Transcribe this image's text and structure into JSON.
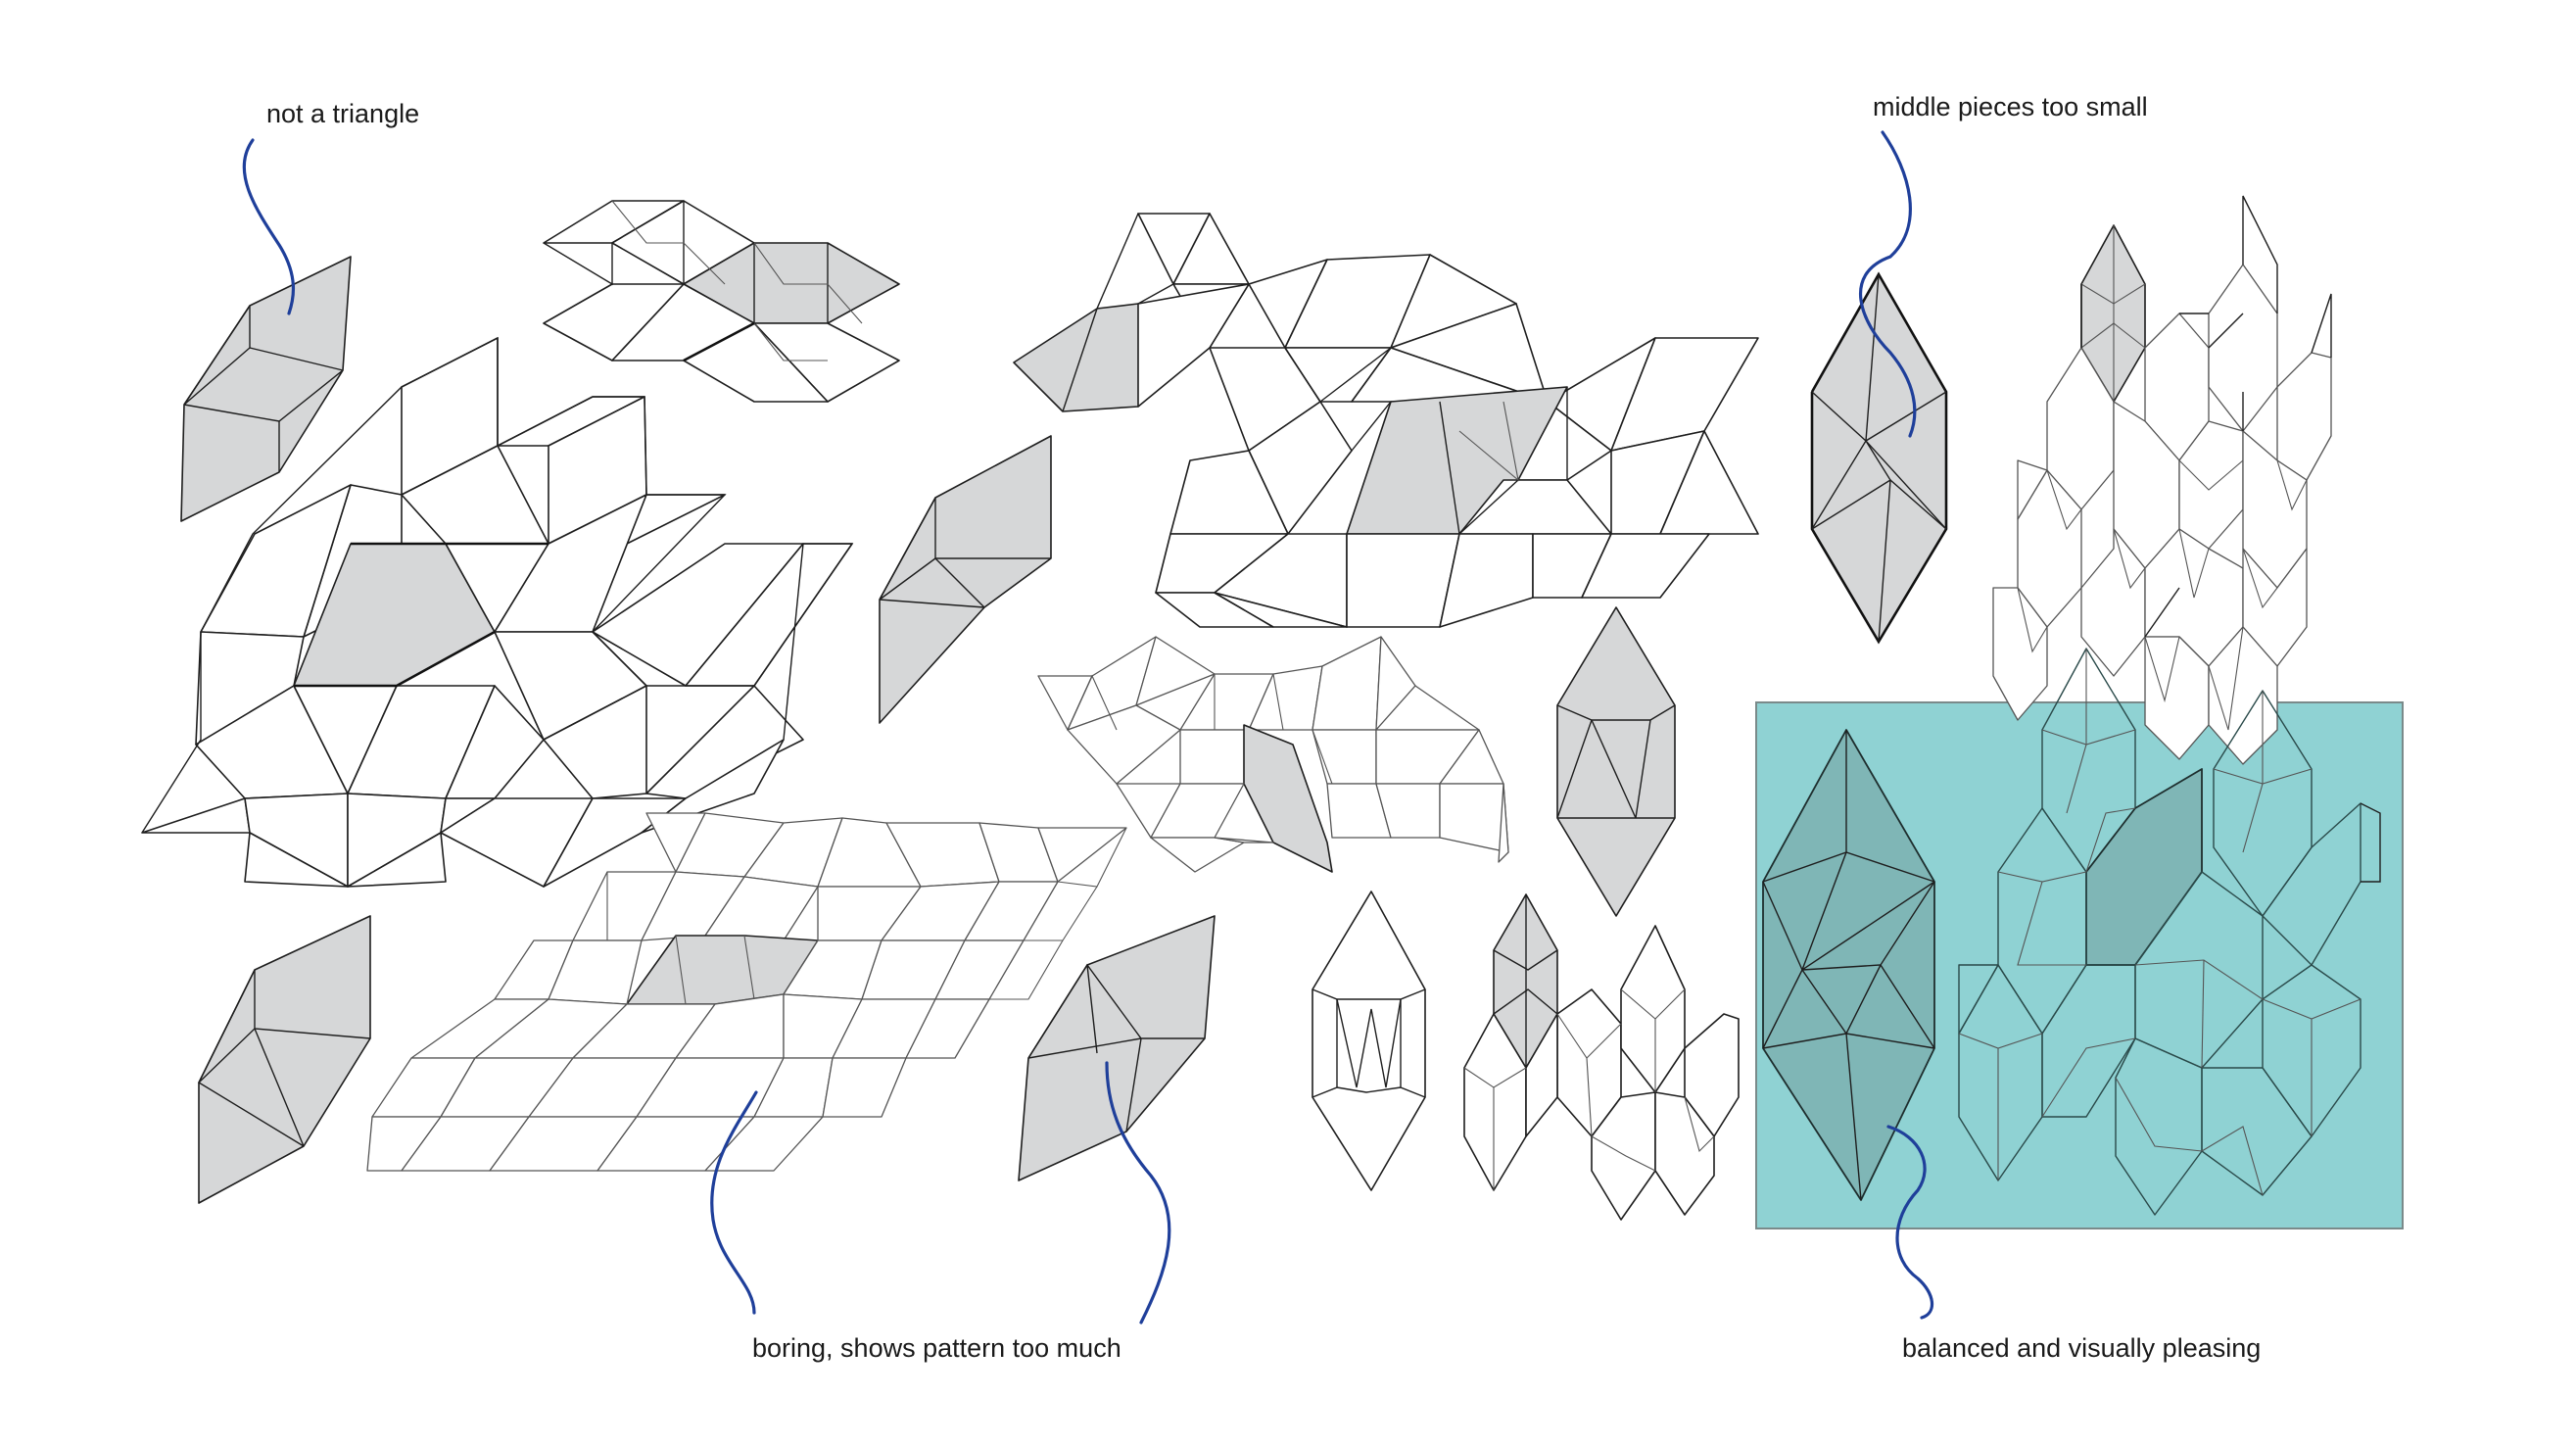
{
  "annotations": {
    "not_triangle": "not a triangle",
    "middle_small": "middle pieces too small",
    "boring": "boring, shows pattern too much",
    "balanced": "balanced and visually pleasing"
  },
  "colors": {
    "tile_gray": "#d6d7d8",
    "highlight_teal": "#8fd2d3",
    "curve_blue": "#1f3f9a"
  }
}
